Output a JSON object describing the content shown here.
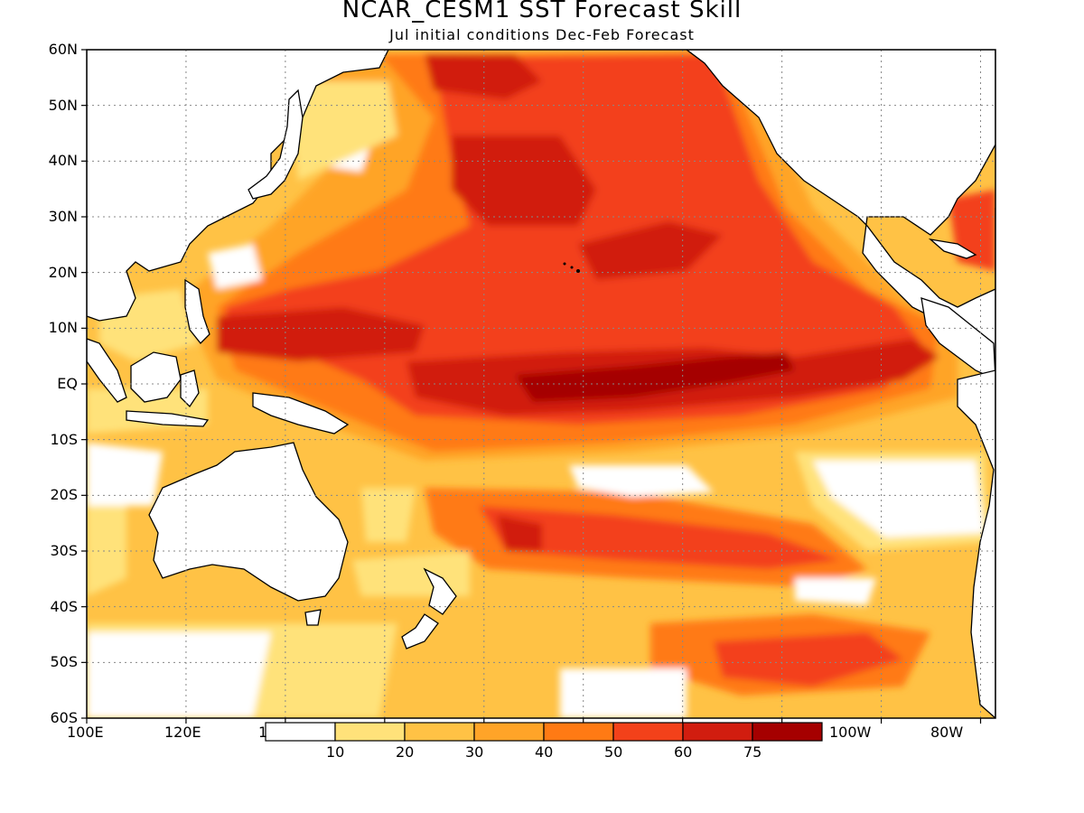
{
  "title": "NCAR_CESM1 SST Forecast Skill",
  "subtitle": "Jul initial conditions  Dec-Feb Forecast",
  "lat_labels": [
    "60N",
    "50N",
    "40N",
    "30N",
    "20N",
    "10N",
    "EQ",
    "10S",
    "20S",
    "30S",
    "40S",
    "50S",
    "60S"
  ],
  "lon_labels": [
    "100E",
    "120E",
    "1",
    "100W",
    "80W"
  ],
  "colorbar": {
    "labels": [
      "10",
      "20",
      "30",
      "40",
      "50",
      "60",
      "75"
    ],
    "colors": [
      "#ffffff",
      "#ffe27a",
      "#ffc245",
      "#ffa428",
      "#ff7a14",
      "#f3411a",
      "#d11d0f",
      "#a50000"
    ]
  }
}
